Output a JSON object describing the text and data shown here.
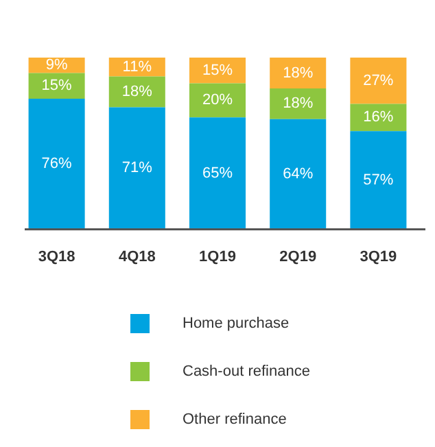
{
  "chart_data": {
    "type": "bar",
    "stacked": true,
    "legend": "bottom",
    "categories": [
      "3Q18",
      "4Q18",
      "1Q19",
      "2Q19",
      "3Q19"
    ],
    "series": [
      {
        "name": "Home purchase",
        "color": "#00a3e0",
        "values": [
          76,
          71,
          65,
          64,
          57
        ],
        "value_labels": [
          "76%",
          "71%",
          "65%",
          "64%",
          "57%"
        ]
      },
      {
        "name": "Cash-out refinance",
        "color": "#8dc63f",
        "values": [
          15,
          18,
          20,
          18,
          16
        ],
        "value_labels": [
          "15%",
          "18%",
          "20%",
          "18%",
          "16%"
        ]
      },
      {
        "name": "Other refinance",
        "color": "#fbb034",
        "values": [
          9,
          11,
          15,
          18,
          27
        ],
        "value_labels": [
          "9%",
          "11%",
          "15%",
          "18%",
          "27%"
        ]
      }
    ]
  }
}
